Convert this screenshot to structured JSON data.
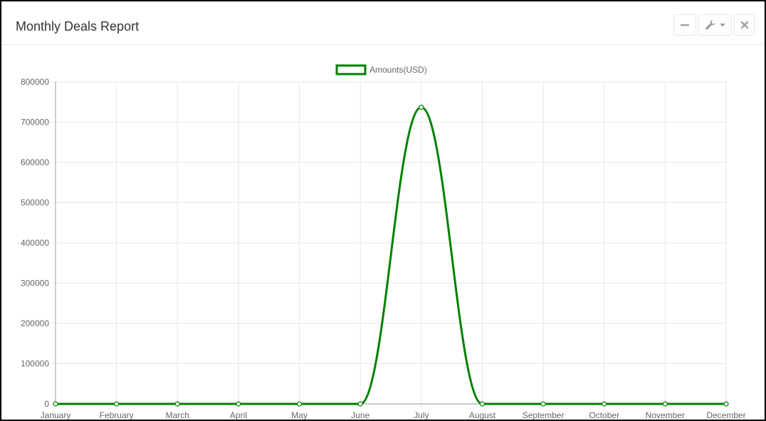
{
  "panel": {
    "title": "Monthly Deals Report",
    "toolbar": {
      "minimize_icon": "minus-icon",
      "tools_icon": "wrench-icon",
      "tools_caret_icon": "caret-down-icon",
      "close_icon": "close-icon"
    }
  },
  "colors": {
    "series": "#008000",
    "grid": "#e6e6e6",
    "axis_text": "#666666"
  },
  "chart_data": {
    "type": "line",
    "categories": [
      "January",
      "February",
      "March",
      "April",
      "May",
      "June",
      "July",
      "August",
      "September",
      "October",
      "November",
      "December"
    ],
    "series": [
      {
        "name": "Amounts(USD)",
        "values": [
          0,
          0,
          0,
          0,
          0,
          0,
          737000,
          0,
          0,
          0,
          0,
          0
        ]
      }
    ],
    "ylim": [
      0,
      800000
    ],
    "yticks": [
      0,
      100000,
      200000,
      300000,
      400000,
      500000,
      600000,
      700000,
      800000
    ],
    "grid": true,
    "legend": "top-center",
    "curve": "smooth"
  }
}
